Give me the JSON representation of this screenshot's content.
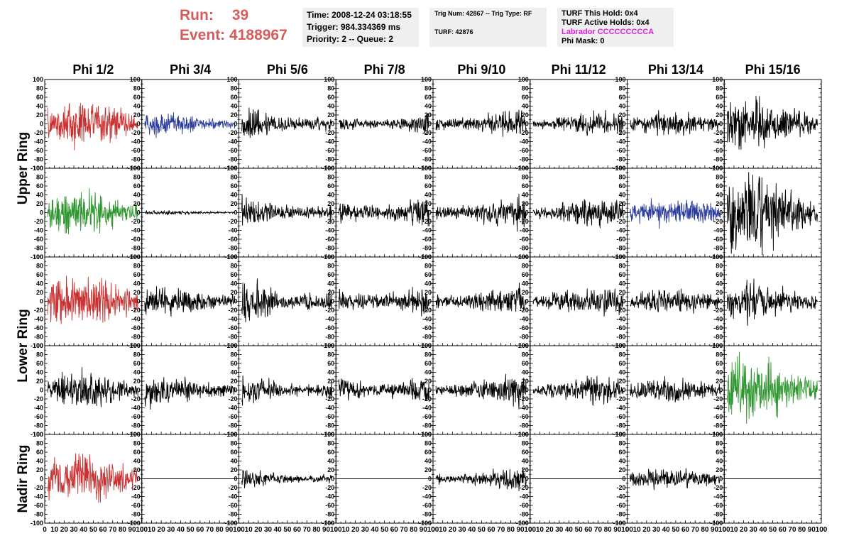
{
  "header": {
    "run_label": "Run:",
    "run_value": "39",
    "event_label": "Event:",
    "event_value": "4188967",
    "time_box": {
      "time": "Time: 2008-12-24 03:18:55",
      "trigger": "Trigger: 984.334369 ms",
      "priority": "Priority: 2 -- Queue: 2"
    },
    "trig_box": {
      "trig_line": "Trig Num: 42867 -- Trig Type: RF",
      "turf_line": "TURF: 42876"
    },
    "turf_box": {
      "this_hold": "TURF This Hold: 0x4",
      "active_holds": "TURF Active Holds: 0x4",
      "labrador": "Labrador CCCCCCCCCA",
      "phi_mask": "Phi Mask: 0"
    }
  },
  "colors": {
    "run_text": "#d65c5c",
    "labrador_text": "#e020e0",
    "box_bg": "#efefef",
    "red": "#c83232",
    "blue": "#2c3c9c",
    "green": "#2e962e",
    "black": "#000000"
  },
  "chart_data": {
    "type": "line",
    "columns": [
      "Phi 1/2",
      "Phi 3/4",
      "Phi 5/6",
      "Phi 7/8",
      "Phi 9/10",
      "Phi 11/12",
      "Phi 13/14",
      "Phi 15/16"
    ],
    "row_groups": [
      {
        "label": "Upper Ring",
        "rows": [
          0,
          1
        ]
      },
      {
        "label": "Lower Ring",
        "rows": [
          2,
          3
        ]
      },
      {
        "label": "Nadir Ring",
        "rows": [
          4
        ]
      }
    ],
    "xlim": [
      0,
      100
    ],
    "ylim": [
      -100,
      100
    ],
    "x_ticks": [
      0,
      10,
      20,
      30,
      40,
      50,
      60,
      70,
      80,
      90,
      100
    ],
    "y_ticks": [
      -100,
      -80,
      -60,
      -40,
      -20,
      0,
      20,
      40,
      60,
      80,
      100
    ],
    "waveforms": [
      [
        {
          "color": "red",
          "amp": 30
        },
        {
          "color": "blue",
          "amp": 15
        },
        {
          "color": "black",
          "amp": 22
        },
        {
          "color": "black",
          "amp": 15
        },
        {
          "color": "black",
          "amp": 18
        },
        {
          "color": "black",
          "amp": 14
        },
        {
          "color": "black",
          "amp": 15
        },
        {
          "color": "black",
          "amp": 32
        }
      ],
      [
        {
          "color": "green",
          "amp": 27
        },
        {
          "color": "black",
          "amp": 3
        },
        {
          "color": "black",
          "amp": 20
        },
        {
          "color": "black",
          "amp": 22
        },
        {
          "color": "black",
          "amp": 20
        },
        {
          "color": "black",
          "amp": 18
        },
        {
          "color": "blue",
          "amp": 18
        },
        {
          "color": "black",
          "amp": 50
        }
      ],
      [
        {
          "color": "red",
          "amp": 35
        },
        {
          "color": "black",
          "amp": 20
        },
        {
          "color": "black",
          "amp": 26
        },
        {
          "color": "black",
          "amp": 22
        },
        {
          "color": "black",
          "amp": 20
        },
        {
          "color": "black",
          "amp": 17
        },
        {
          "color": "black",
          "amp": 17
        },
        {
          "color": "black",
          "amp": 24
        }
      ],
      [
        {
          "color": "black",
          "amp": 23
        },
        {
          "color": "black",
          "amp": 20
        },
        {
          "color": "black",
          "amp": 20
        },
        {
          "color": "black",
          "amp": 22
        },
        {
          "color": "black",
          "amp": 20
        },
        {
          "color": "black",
          "amp": 17
        },
        {
          "color": "black",
          "amp": 17
        },
        {
          "color": "green",
          "amp": 40
        }
      ],
      [
        {
          "color": "red",
          "amp": 32
        },
        {
          "color": "black",
          "amp": 0
        },
        {
          "color": "black",
          "amp": 12
        },
        {
          "color": "black",
          "amp": 0
        },
        {
          "color": "black",
          "amp": 15
        },
        {
          "color": "black",
          "amp": 0
        },
        {
          "color": "black",
          "amp": 13
        },
        {
          "color": "black",
          "amp": 0
        }
      ]
    ]
  }
}
